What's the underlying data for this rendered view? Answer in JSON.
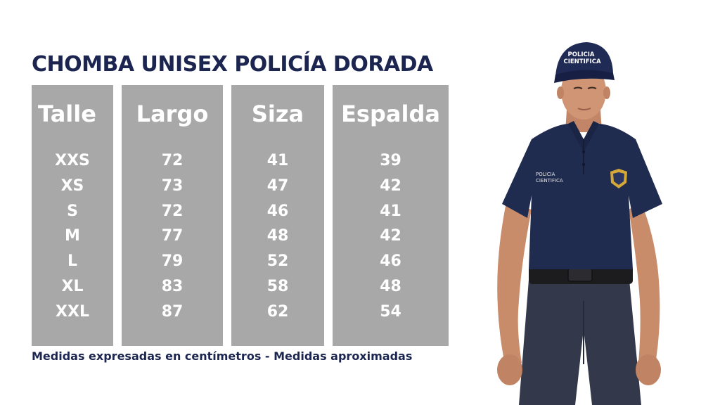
{
  "title": "CHOMBA UNISEX POLICÍA DORADA",
  "table": {
    "headers": [
      "Talle",
      "Largo",
      "Siza",
      "Espalda"
    ],
    "talle": [
      "XXS",
      "XS",
      "S",
      "M",
      "L",
      "XL",
      "XXL"
    ],
    "largo": [
      "72",
      "73",
      "72",
      "77",
      "79",
      "83",
      "87"
    ],
    "siza": [
      "41",
      "47",
      "46",
      "48",
      "52",
      "58",
      "62"
    ],
    "espalda": [
      "39",
      "42",
      "41",
      "42",
      "46",
      "48",
      "54"
    ]
  },
  "footnote": "Medidas expresadas en centímetros - Medidas aproximadas",
  "photo": {
    "cap_text": [
      "POLICIA",
      "CIENTIFICA"
    ],
    "chest_text": [
      "POLICIA",
      "CIENTIFICA"
    ]
  },
  "colors": {
    "navy": "#1b2550",
    "column_gray": "#a8a8a8"
  }
}
